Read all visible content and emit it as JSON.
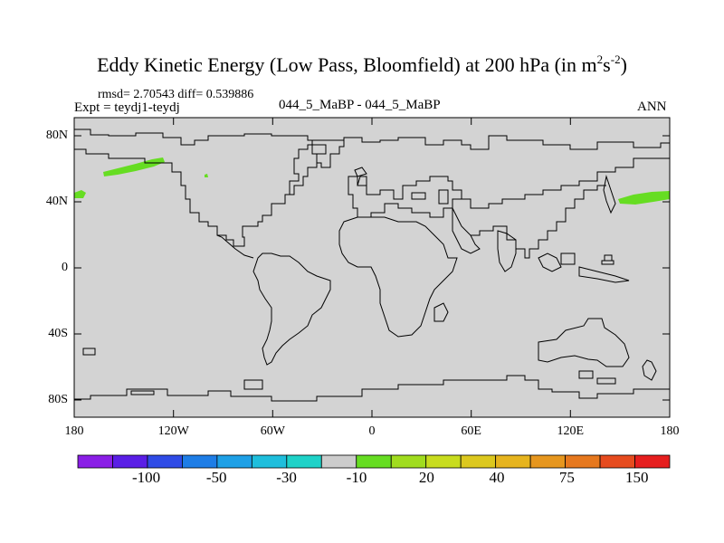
{
  "title": {
    "main": "Eddy Kinetic Energy (Low Pass, Bloomfield) at 200 hPa (in m",
    "sup1": "2",
    "mid": "s",
    "sup2": "-2",
    "end": ")"
  },
  "stats": "rmsd= 2.70543 diff= 0.539886",
  "expt": "Expt = teydj1-teydj",
  "center_label": "044_5_MaBP - 044_5_MaBP",
  "season": "ANN",
  "lat_labels": [
    "80N",
    "40N",
    "0",
    "40S",
    "80S"
  ],
  "lon_labels": [
    "180",
    "120W",
    "60W",
    "0",
    "60E",
    "120E",
    "180"
  ],
  "colorbar": {
    "colors": [
      "#8a1ee6",
      "#5a1ee6",
      "#2f4be6",
      "#1e7de6",
      "#1ea0e6",
      "#1ebedc",
      "#1ed2c8",
      "#cccccc",
      "#66dd22",
      "#a0dc1e",
      "#c8dc1e",
      "#dcc81e",
      "#e6b41e",
      "#e6961e",
      "#e6781e",
      "#e64b1e",
      "#e61e1e"
    ],
    "labels": [
      "-100",
      "-50",
      "-30",
      "-10",
      "20",
      "40",
      "75",
      "150"
    ]
  },
  "colors": {
    "land_fill": "#d3d3d3",
    "anomaly_fill": "#66dd22"
  }
}
